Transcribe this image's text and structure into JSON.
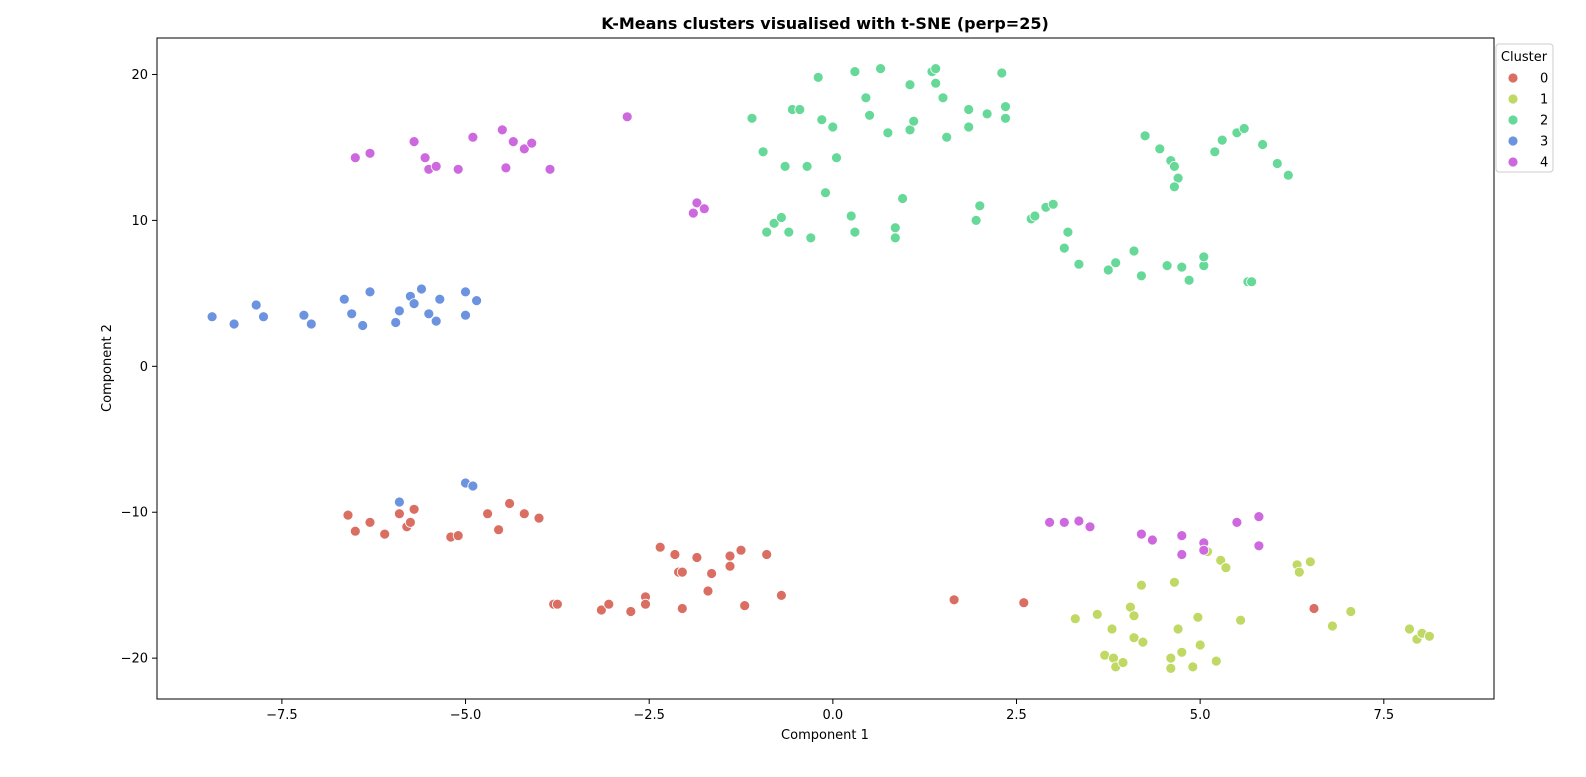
{
  "chart_data": {
    "type": "scatter",
    "title": "K-Means clusters visualised with t-SNE (perp=25)",
    "xlabel": "Component 1",
    "ylabel": "Component 2",
    "xlim": [
      -9.2,
      9.0
    ],
    "ylim": [
      -22.8,
      22.5
    ],
    "xticks": [
      -7.5,
      -5.0,
      -2.5,
      0.0,
      2.5,
      5.0,
      7.5
    ],
    "xtick_labels": [
      "−7.5",
      "−5.0",
      "−2.5",
      "0.0",
      "2.5",
      "5.0",
      "7.5"
    ],
    "yticks": [
      -20,
      -10,
      0,
      10,
      20
    ],
    "ytick_labels": [
      "−20",
      "−10",
      "0",
      "10",
      "20"
    ],
    "grid": false,
    "legend": {
      "title": "Cluster",
      "placement": "top-right"
    },
    "series": [
      {
        "name": "0",
        "color": "#db6e63",
        "points": [
          [
            -6.6,
            -10.2
          ],
          [
            -6.5,
            -11.3
          ],
          [
            -6.3,
            -10.7
          ],
          [
            -6.1,
            -11.5
          ],
          [
            -5.9,
            -10.1
          ],
          [
            -5.8,
            -11.0
          ],
          [
            -5.75,
            -10.7
          ],
          [
            -5.7,
            -9.8
          ],
          [
            -5.2,
            -11.7
          ],
          [
            -5.1,
            -11.6
          ],
          [
            -4.7,
            -10.1
          ],
          [
            -4.55,
            -11.2
          ],
          [
            -4.4,
            -9.4
          ],
          [
            -4.2,
            -10.1
          ],
          [
            -4.0,
            -10.4
          ],
          [
            -3.8,
            -16.3
          ],
          [
            -3.75,
            -16.3
          ],
          [
            -3.15,
            -16.7
          ],
          [
            -3.05,
            -16.3
          ],
          [
            -2.75,
            -16.8
          ],
          [
            -2.55,
            -15.8
          ],
          [
            -2.55,
            -16.3
          ],
          [
            -2.35,
            -12.4
          ],
          [
            -2.15,
            -12.9
          ],
          [
            -2.1,
            -14.1
          ],
          [
            -2.05,
            -14.1
          ],
          [
            -2.05,
            -16.6
          ],
          [
            -1.85,
            -13.1
          ],
          [
            -1.7,
            -15.4
          ],
          [
            -1.65,
            -14.2
          ],
          [
            -1.4,
            -13.0
          ],
          [
            -1.4,
            -13.7
          ],
          [
            -1.25,
            -12.6
          ],
          [
            -1.2,
            -16.4
          ],
          [
            -0.9,
            -12.9
          ],
          [
            -0.7,
            -15.7
          ],
          [
            1.65,
            -16.0
          ],
          [
            2.6,
            -16.2
          ],
          [
            6.55,
            -16.6
          ]
        ]
      },
      {
        "name": "1",
        "color": "#bfd964",
        "points": [
          [
            3.3,
            -17.3
          ],
          [
            3.6,
            -17.0
          ],
          [
            3.7,
            -19.8
          ],
          [
            3.8,
            -18.0
          ],
          [
            3.82,
            -20.0
          ],
          [
            3.85,
            -20.6
          ],
          [
            3.95,
            -20.3
          ],
          [
            4.05,
            -16.5
          ],
          [
            4.1,
            -17.1
          ],
          [
            4.1,
            -18.6
          ],
          [
            4.2,
            -15.0
          ],
          [
            4.22,
            -18.9
          ],
          [
            4.65,
            -14.8
          ],
          [
            4.7,
            -18.0
          ],
          [
            4.75,
            -19.6
          ],
          [
            4.9,
            -20.6
          ],
          [
            4.97,
            -17.2
          ],
          [
            5.0,
            -19.1
          ],
          [
            5.1,
            -12.7
          ],
          [
            5.22,
            -20.2
          ],
          [
            5.28,
            -13.3
          ],
          [
            5.35,
            -13.8
          ],
          [
            5.55,
            -17.4
          ],
          [
            6.32,
            -13.6
          ],
          [
            6.35,
            -14.1
          ],
          [
            6.5,
            -13.4
          ],
          [
            6.8,
            -17.8
          ],
          [
            7.05,
            -16.8
          ],
          [
            7.85,
            -18.0
          ],
          [
            7.95,
            -18.7
          ],
          [
            8.02,
            -18.3
          ],
          [
            8.12,
            -18.5
          ],
          [
            4.6,
            -20.0
          ],
          [
            4.6,
            -20.7
          ]
        ]
      },
      {
        "name": "2",
        "color": "#66d998",
        "points": [
          [
            -1.1,
            17.0
          ],
          [
            -0.95,
            14.7
          ],
          [
            -0.9,
            9.2
          ],
          [
            -0.8,
            9.8
          ],
          [
            -0.7,
            10.2
          ],
          [
            -0.65,
            13.7
          ],
          [
            -0.6,
            9.2
          ],
          [
            -0.55,
            17.6
          ],
          [
            -0.45,
            17.6
          ],
          [
            -0.35,
            13.7
          ],
          [
            -0.3,
            8.8
          ],
          [
            -0.2,
            19.8
          ],
          [
            -0.15,
            16.9
          ],
          [
            -0.1,
            11.9
          ],
          [
            0.0,
            16.4
          ],
          [
            0.05,
            14.3
          ],
          [
            0.3,
            20.2
          ],
          [
            0.25,
            10.3
          ],
          [
            0.3,
            9.2
          ],
          [
            0.45,
            18.4
          ],
          [
            0.5,
            17.2
          ],
          [
            0.65,
            20.4
          ],
          [
            0.75,
            16.0
          ],
          [
            0.85,
            9.5
          ],
          [
            0.85,
            8.8
          ],
          [
            0.95,
            11.5
          ],
          [
            1.05,
            16.2
          ],
          [
            1.05,
            19.3
          ],
          [
            1.1,
            16.8
          ],
          [
            1.35,
            20.2
          ],
          [
            1.4,
            19.4
          ],
          [
            1.4,
            20.4
          ],
          [
            1.5,
            18.4
          ],
          [
            1.55,
            15.7
          ],
          [
            1.85,
            17.6
          ],
          [
            1.85,
            16.4
          ],
          [
            1.95,
            10.0
          ],
          [
            2.0,
            11.0
          ],
          [
            2.1,
            17.3
          ],
          [
            2.3,
            20.1
          ],
          [
            2.35,
            17.8
          ],
          [
            2.35,
            17.0
          ],
          [
            2.7,
            10.1
          ],
          [
            2.75,
            10.3
          ],
          [
            2.9,
            10.9
          ],
          [
            3.0,
            11.1
          ],
          [
            3.15,
            8.1
          ],
          [
            3.2,
            9.2
          ],
          [
            3.35,
            7.0
          ],
          [
            3.75,
            6.6
          ],
          [
            3.85,
            7.1
          ],
          [
            4.1,
            7.9
          ],
          [
            4.2,
            6.2
          ],
          [
            4.25,
            15.8
          ],
          [
            4.45,
            14.9
          ],
          [
            4.55,
            6.9
          ],
          [
            4.6,
            14.1
          ],
          [
            4.65,
            13.7
          ],
          [
            4.7,
            12.9
          ],
          [
            4.65,
            12.3
          ],
          [
            4.75,
            6.8
          ],
          [
            4.85,
            5.9
          ],
          [
            5.05,
            6.9
          ],
          [
            5.05,
            7.5
          ],
          [
            5.2,
            14.7
          ],
          [
            5.3,
            15.5
          ],
          [
            5.5,
            16.0
          ],
          [
            5.6,
            16.3
          ],
          [
            5.65,
            5.8
          ],
          [
            5.7,
            5.8
          ],
          [
            5.85,
            15.2
          ],
          [
            6.05,
            13.9
          ],
          [
            6.2,
            13.1
          ]
        ]
      },
      {
        "name": "3",
        "color": "#6b93e0",
        "points": [
          [
            -8.45,
            3.4
          ],
          [
            -8.15,
            2.9
          ],
          [
            -7.85,
            4.2
          ],
          [
            -7.75,
            3.4
          ],
          [
            -7.2,
            3.5
          ],
          [
            -7.1,
            2.9
          ],
          [
            -6.65,
            4.6
          ],
          [
            -6.55,
            3.6
          ],
          [
            -6.4,
            2.8
          ],
          [
            -6.3,
            5.1
          ],
          [
            -5.95,
            3.0
          ],
          [
            -5.9,
            3.8
          ],
          [
            -5.75,
            4.8
          ],
          [
            -5.7,
            4.3
          ],
          [
            -5.6,
            5.3
          ],
          [
            -5.5,
            3.6
          ],
          [
            -5.4,
            3.1
          ],
          [
            -5.35,
            4.6
          ],
          [
            -5.0,
            5.1
          ],
          [
            -5.0,
            3.5
          ],
          [
            -4.85,
            4.5
          ],
          [
            -5.9,
            -9.3
          ],
          [
            -5.0,
            -8.0
          ],
          [
            -4.9,
            -8.2
          ]
        ]
      },
      {
        "name": "4",
        "color": "#cd68df",
        "points": [
          [
            -6.5,
            14.3
          ],
          [
            -6.3,
            14.6
          ],
          [
            -5.7,
            15.4
          ],
          [
            -5.55,
            14.3
          ],
          [
            -5.5,
            13.5
          ],
          [
            -5.4,
            13.7
          ],
          [
            -5.1,
            13.5
          ],
          [
            -4.9,
            15.7
          ],
          [
            -4.5,
            16.2
          ],
          [
            -4.45,
            13.6
          ],
          [
            -4.35,
            15.4
          ],
          [
            -4.2,
            14.9
          ],
          [
            -4.1,
            15.3
          ],
          [
            -3.85,
            13.5
          ],
          [
            -2.8,
            17.1
          ],
          [
            -1.9,
            10.5
          ],
          [
            -1.85,
            11.2
          ],
          [
            -1.75,
            10.8
          ],
          [
            2.95,
            -10.7
          ],
          [
            3.15,
            -10.7
          ],
          [
            3.35,
            -10.6
          ],
          [
            3.5,
            -11.0
          ],
          [
            4.2,
            -11.5
          ],
          [
            4.35,
            -11.9
          ],
          [
            4.75,
            -11.6
          ],
          [
            4.75,
            -12.9
          ],
          [
            5.05,
            -12.1
          ],
          [
            5.05,
            -12.6
          ],
          [
            5.5,
            -10.7
          ],
          [
            5.8,
            -10.3
          ],
          [
            5.8,
            -12.3
          ]
        ]
      }
    ]
  }
}
